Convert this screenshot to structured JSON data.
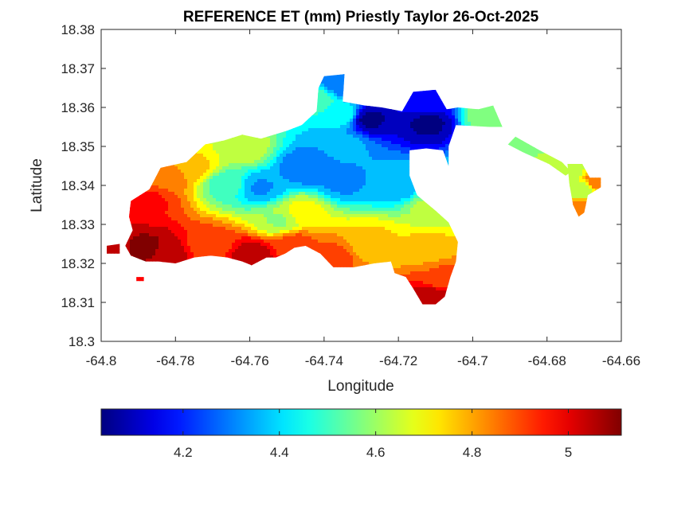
{
  "chart_data": {
    "type": "heatmap",
    "title": "REFERENCE ET (mm) Priestly Taylor 26-Oct-2025",
    "xlabel": "Longitude",
    "ylabel": "Latitude",
    "xlim": [
      -64.8,
      -64.66
    ],
    "ylim": [
      18.3,
      18.38
    ],
    "x_ticks": [
      "-64.8",
      "-64.78",
      "-64.76",
      "-64.74",
      "-64.72",
      "-64.7",
      "-64.68",
      "-64.66"
    ],
    "y_ticks": [
      "18.3",
      "18.31",
      "18.32",
      "18.33",
      "18.34",
      "18.35",
      "18.36",
      "18.37",
      "18.38"
    ],
    "colormap": "jet",
    "colorbar": {
      "orientation": "horizontal",
      "placement": "below",
      "range": [
        4.03,
        5.11
      ],
      "ticks": [
        "4.2",
        "4.4",
        "4.6",
        "4.8",
        "5"
      ]
    },
    "region_outline": [
      [
        -64.792,
        18.336
      ],
      [
        -64.787,
        18.339
      ],
      [
        -64.784,
        18.3445
      ],
      [
        -64.777,
        18.346
      ],
      [
        -64.772,
        18.3505
      ],
      [
        -64.767,
        18.3515
      ],
      [
        -64.762,
        18.353
      ],
      [
        -64.757,
        18.352
      ],
      [
        -64.75,
        18.354
      ],
      [
        -64.746,
        18.3555
      ],
      [
        -64.742,
        18.359
      ],
      [
        -64.7415,
        18.365
      ],
      [
        -64.74,
        18.368
      ],
      [
        -64.7345,
        18.3685
      ],
      [
        -64.735,
        18.3615
      ],
      [
        -64.729,
        18.3605
      ],
      [
        -64.7245,
        18.36
      ],
      [
        -64.719,
        18.359
      ],
      [
        -64.716,
        18.364
      ],
      [
        -64.71,
        18.3645
      ],
      [
        -64.707,
        18.3595
      ],
      [
        -64.704,
        18.36
      ],
      [
        -64.6985,
        18.3595
      ],
      [
        -64.6945,
        18.3605
      ],
      [
        -64.692,
        18.355
      ],
      [
        -64.6955,
        18.355
      ],
      [
        -64.7045,
        18.3555
      ],
      [
        -64.7065,
        18.35
      ],
      [
        -64.7065,
        18.345
      ],
      [
        -64.708,
        18.349
      ],
      [
        -64.7125,
        18.3495
      ],
      [
        -64.717,
        18.349
      ],
      [
        -64.717,
        18.3425
      ],
      [
        -64.715,
        18.3375
      ],
      [
        -64.71,
        18.3335
      ],
      [
        -64.7065,
        18.3305
      ],
      [
        -64.704,
        18.3255
      ],
      [
        -64.7045,
        18.3205
      ],
      [
        -64.706,
        18.3165
      ],
      [
        -64.7075,
        18.3115
      ],
      [
        -64.71,
        18.3095
      ],
      [
        -64.7135,
        18.3095
      ],
      [
        -64.716,
        18.3135
      ],
      [
        -64.718,
        18.3165
      ],
      [
        -64.721,
        18.3175
      ],
      [
        -64.722,
        18.3205
      ],
      [
        -64.7265,
        18.32
      ],
      [
        -64.732,
        18.319
      ],
      [
        -64.7375,
        18.319
      ],
      [
        -64.741,
        18.3225
      ],
      [
        -64.745,
        18.3245
      ],
      [
        -64.748,
        18.324
      ],
      [
        -64.7505,
        18.3225
      ],
      [
        -64.753,
        18.3215
      ],
      [
        -64.7555,
        18.3215
      ],
      [
        -64.7595,
        18.3195
      ],
      [
        -64.762,
        18.3205
      ],
      [
        -64.766,
        18.3215
      ],
      [
        -64.7705,
        18.322
      ],
      [
        -64.775,
        18.3215
      ],
      [
        -64.78,
        18.32
      ],
      [
        -64.7845,
        18.3205
      ],
      [
        -64.788,
        18.3205
      ],
      [
        -64.792,
        18.322
      ],
      [
        -64.7935,
        18.3245
      ],
      [
        -64.7915,
        18.3285
      ],
      [
        -64.7925,
        18.332
      ]
    ],
    "fragments": [
      [
        [
          -64.6885,
          18.3525
        ],
        [
          -64.682,
          18.349
        ],
        [
          -64.676,
          18.346
        ],
        [
          -64.6735,
          18.3435
        ],
        [
          -64.675,
          18.3425
        ],
        [
          -64.6795,
          18.3455
        ],
        [
          -64.6865,
          18.3485
        ],
        [
          -64.6905,
          18.3505
        ]
      ],
      [
        [
          -64.6745,
          18.3455
        ],
        [
          -64.6705,
          18.3455
        ],
        [
          -64.6685,
          18.342
        ],
        [
          -64.6655,
          18.342
        ],
        [
          -64.6655,
          18.3395
        ],
        [
          -64.669,
          18.3375
        ],
        [
          -64.67,
          18.333
        ],
        [
          -64.6715,
          18.332
        ],
        [
          -64.673,
          18.335
        ],
        [
          -64.674,
          18.3405
        ]
      ],
      [
        [
          -64.7985,
          18.3245
        ],
        [
          -64.795,
          18.325
        ],
        [
          -64.795,
          18.3225
        ],
        [
          -64.7985,
          18.3225
        ]
      ],
      [
        [
          -64.7905,
          18.3165
        ],
        [
          -64.7885,
          18.3165
        ],
        [
          -64.7885,
          18.3155
        ],
        [
          -64.7905,
          18.3155
        ]
      ]
    ],
    "anchors": [
      {
        "lon": -64.728,
        "lat": 18.357,
        "value": 4.05
      },
      {
        "lon": -64.712,
        "lat": 18.356,
        "value": 4.05
      },
      {
        "lon": -64.713,
        "lat": 18.361,
        "value": 4.18
      },
      {
        "lon": -64.735,
        "lat": 18.366,
        "value": 4.28
      },
      {
        "lon": -64.742,
        "lat": 18.362,
        "value": 4.5
      },
      {
        "lon": -64.735,
        "lat": 18.358,
        "value": 4.45
      },
      {
        "lon": -64.745,
        "lat": 18.3445,
        "value": 4.28
      },
      {
        "lon": -64.735,
        "lat": 18.341,
        "value": 4.32
      },
      {
        "lon": -64.7345,
        "lat": 18.3505,
        "value": 4.35
      },
      {
        "lon": -64.72,
        "lat": 18.34,
        "value": 4.35
      },
      {
        "lon": -64.757,
        "lat": 18.3395,
        "value": 4.33
      },
      {
        "lon": -64.7665,
        "lat": 18.3405,
        "value": 4.5
      },
      {
        "lon": -64.762,
        "lat": 18.3495,
        "value": 4.65
      },
      {
        "lon": -64.752,
        "lat": 18.331,
        "value": 4.6
      },
      {
        "lon": -64.746,
        "lat": 18.333,
        "value": 4.7
      },
      {
        "lon": -64.711,
        "lat": 18.334,
        "value": 4.62
      },
      {
        "lon": -64.712,
        "lat": 18.3245,
        "value": 4.75
      },
      {
        "lon": -64.727,
        "lat": 18.3255,
        "value": 4.75
      },
      {
        "lon": -64.7075,
        "lat": 18.3165,
        "value": 4.88
      },
      {
        "lon": -64.7105,
        "lat": 18.311,
        "value": 5.05
      },
      {
        "lon": -64.7745,
        "lat": 18.3445,
        "value": 4.75
      },
      {
        "lon": -64.782,
        "lat": 18.342,
        "value": 4.85
      },
      {
        "lon": -64.787,
        "lat": 18.336,
        "value": 4.95
      },
      {
        "lon": -64.788,
        "lat": 18.3235,
        "value": 5.1
      },
      {
        "lon": -64.783,
        "lat": 18.322,
        "value": 5.05
      },
      {
        "lon": -64.7595,
        "lat": 18.322,
        "value": 5.05
      },
      {
        "lon": -64.7705,
        "lat": 18.3245,
        "value": 4.9
      },
      {
        "lon": -64.748,
        "lat": 18.325,
        "value": 4.9
      },
      {
        "lon": -64.738,
        "lat": 18.3215,
        "value": 4.9
      },
      {
        "lon": -64.696,
        "lat": 18.358,
        "value": 4.58
      },
      {
        "lon": -64.689,
        "lat": 18.3515,
        "value": 4.58
      },
      {
        "lon": -64.6745,
        "lat": 18.344,
        "value": 4.62
      },
      {
        "lon": -64.671,
        "lat": 18.339,
        "value": 4.62
      },
      {
        "lon": -64.6665,
        "lat": 18.341,
        "value": 4.85
      },
      {
        "lon": -64.671,
        "lat": 18.334,
        "value": 4.85
      },
      {
        "lon": -64.7965,
        "lat": 18.3235,
        "value": 5.05
      },
      {
        "lon": -64.7895,
        "lat": 18.316,
        "value": 4.95
      }
    ]
  }
}
